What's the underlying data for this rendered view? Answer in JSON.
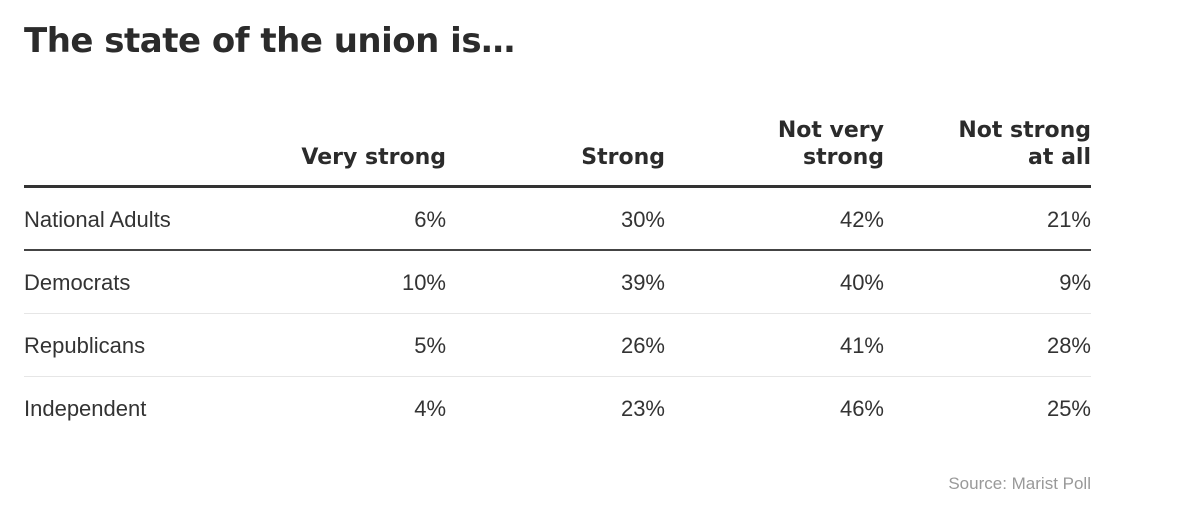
{
  "title": "The state of the union is…",
  "chart_data": {
    "type": "table",
    "title": "The state of the union is…",
    "columns": [
      "Very strong",
      "Strong",
      "Not very\nstrong",
      "Not strong\nat all"
    ],
    "rows": [
      {
        "label": "National Adults",
        "values": [
          "6%",
          "30%",
          "42%",
          "21%"
        ]
      },
      {
        "label": "Democrats",
        "values": [
          "10%",
          "39%",
          "40%",
          "9%"
        ]
      },
      {
        "label": "Republicans",
        "values": [
          "5%",
          "26%",
          "41%",
          "28%"
        ]
      },
      {
        "label": "Independent",
        "values": [
          "4%",
          "23%",
          "46%",
          "25%"
        ]
      }
    ],
    "source": "Source: Marist Poll"
  },
  "colors": {
    "text": "#333333",
    "title": "#2b2b2b",
    "source": "#999999",
    "rule": "#333333",
    "divider": "#e6e6e6"
  }
}
